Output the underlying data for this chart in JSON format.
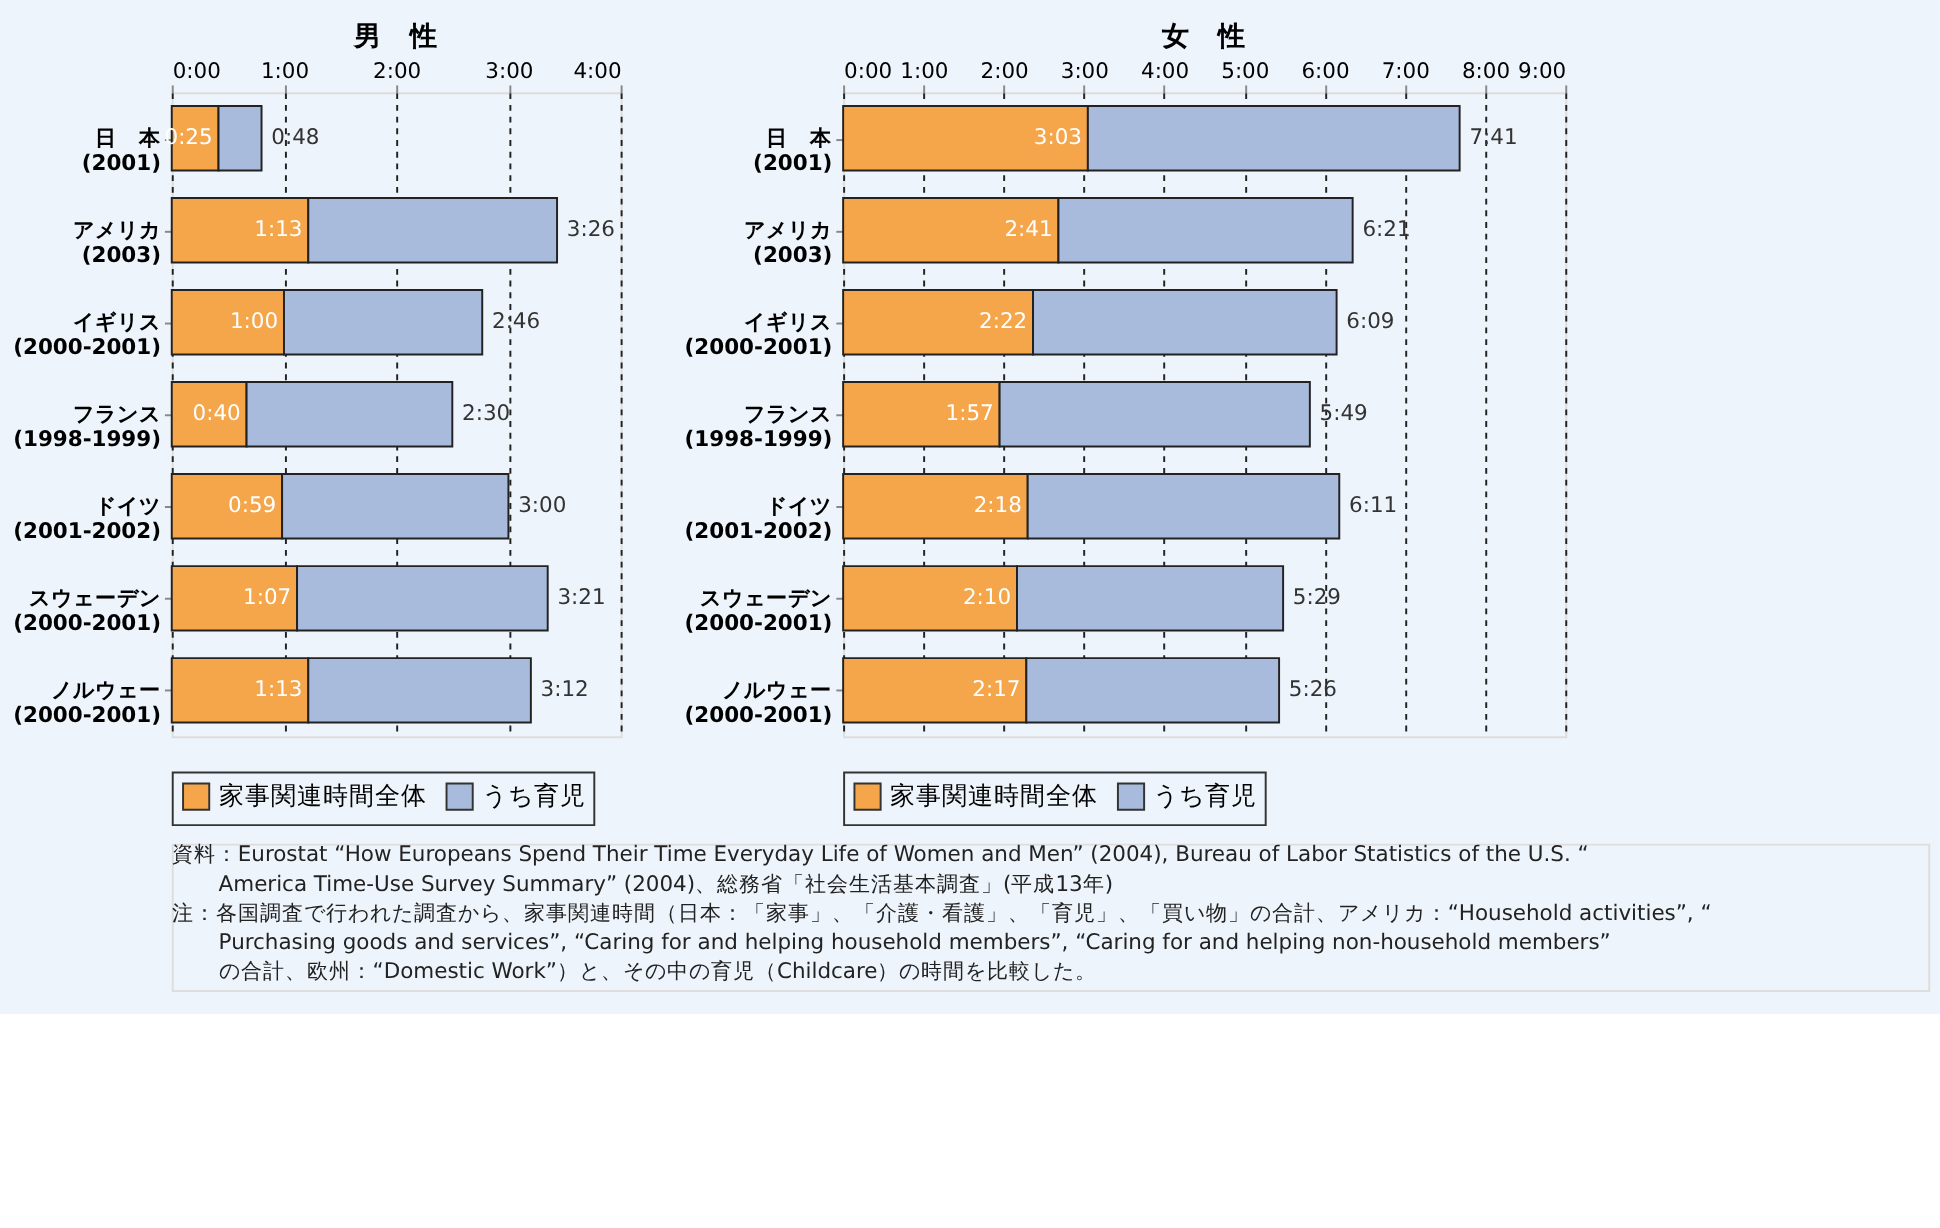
{
  "chart_data": [
    {
      "type": "bar",
      "title": "男　性",
      "orientation": "horizontal",
      "stacked": true,
      "grid": "x",
      "legend": "bottom",
      "categories": [
        "日　本\n(2001)",
        "アメリカ\n(2003)",
        "イギリス\n(2000-2001)",
        "フランス\n(1998-1999)",
        "ドイツ\n(2001-2002)",
        "スウェーデン\n(2000-2001)",
        "ノルウェー\n(2000-2001)"
      ],
      "xlim": [
        0,
        240
      ],
      "xticks": [
        {
          "value": 0,
          "label": "0:00"
        },
        {
          "value": 60,
          "label": "1:00"
        },
        {
          "value": 120,
          "label": "2:00"
        },
        {
          "value": 180,
          "label": "3:00"
        },
        {
          "value": 240,
          "label": "4:00"
        }
      ],
      "series": [
        {
          "name": "家事関連時間全体",
          "color": "#f5a54a",
          "values": [
            25,
            73,
            60,
            40,
            59,
            67,
            73
          ],
          "value_labels": [
            "0:25",
            "1:13",
            "1:00",
            "0:40",
            "0:59",
            "1:07",
            "1:13"
          ]
        },
        {
          "name": "うち育児",
          "color": "#a9bbdc",
          "values": [
            23,
            133,
            106,
            110,
            121,
            134,
            119
          ]
        }
      ],
      "totals": [
        "0:48",
        "3:26",
        "2:46",
        "2:30",
        "3:00",
        "3:21",
        "3:12"
      ]
    },
    {
      "type": "bar",
      "title": "女　性",
      "orientation": "horizontal",
      "stacked": true,
      "grid": "x",
      "legend": "bottom",
      "categories": [
        "日　本\n(2001)",
        "アメリカ\n(2003)",
        "イギリス\n(2000-2001)",
        "フランス\n(1998-1999)",
        "ドイツ\n(2001-2002)",
        "スウェーデン\n(2000-2001)",
        "ノルウェー\n(2000-2001)"
      ],
      "xlim": [
        0,
        540
      ],
      "xticks": [
        {
          "value": 0,
          "label": "0:00"
        },
        {
          "value": 60,
          "label": "1:00"
        },
        {
          "value": 120,
          "label": "2:00"
        },
        {
          "value": 180,
          "label": "3:00"
        },
        {
          "value": 240,
          "label": "4:00"
        },
        {
          "value": 300,
          "label": "5:00"
        },
        {
          "value": 360,
          "label": "6:00"
        },
        {
          "value": 420,
          "label": "7:00"
        },
        {
          "value": 480,
          "label": "8:00"
        },
        {
          "value": 540,
          "label": "9:00"
        }
      ],
      "series": [
        {
          "name": "家事関連時間全体",
          "color": "#f5a54a",
          "values": [
            183,
            161,
            142,
            117,
            138,
            130,
            137
          ],
          "value_labels": [
            "3:03",
            "2:41",
            "2:22",
            "1:57",
            "2:18",
            "2:10",
            "2:17"
          ]
        },
        {
          "name": "うち育児",
          "color": "#a9bbdc",
          "values": [
            278,
            220,
            227,
            232,
            233,
            199,
            189
          ]
        }
      ],
      "totals": [
        "7:41",
        "6:21",
        "6:09",
        "5:49",
        "6:11",
        "5:29",
        "5:26"
      ],
      "annotations": [
        "資料：Eurostat “How Europeans Spend Their Time Everyday Life of Women and Men” (2004), Bureau of Labor Statistics of the U.S. “America Time-Use Survey Summary” (2004)、総務省「社会生活基本調査」(平成13年)",
        "注：各国調査で行われた調査から、家事関連時間（日本：「家事」、「介護・看護」、「育児」、「買い物」の合計、アメリカ：“Household activities”, “Purchasing goods and services”, “Caring for and helping household members”, “Caring for and helping non-household members”の合計、欧州：“Domestic Work”）と、その中の育児（Childcare）の時間を比較した。"
      ]
    }
  ]
}
